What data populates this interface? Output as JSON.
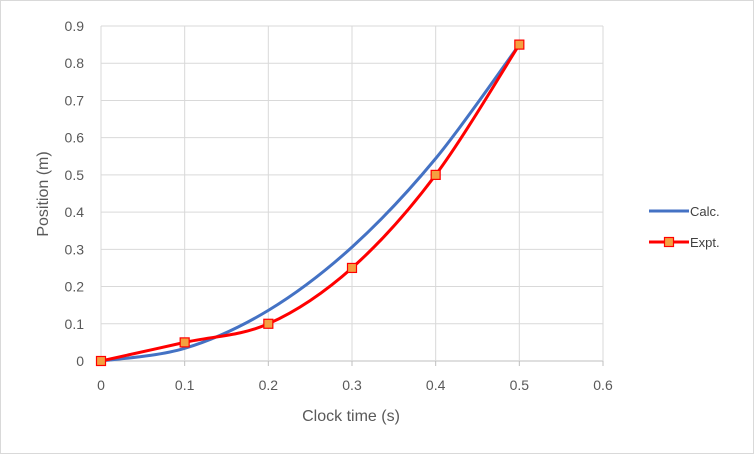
{
  "chart_data": {
    "type": "line",
    "title": "",
    "xlabel": "Clock time (s)",
    "ylabel": "Position  (m)",
    "xlim": [
      0,
      0.6
    ],
    "ylim": [
      0,
      0.9
    ],
    "x_ticks": [
      "0",
      "0.1",
      "0.2",
      "0.3",
      "0.4",
      "0.5",
      "0.6"
    ],
    "y_ticks": [
      "0",
      "0.1",
      "0.2",
      "0.3",
      "0.4",
      "0.5",
      "0.6",
      "0.7",
      "0.8",
      "0.9"
    ],
    "grid": true,
    "legend_position": "right",
    "series": [
      {
        "name": "Calc.",
        "color": "#4472c4",
        "marker": "none",
        "smooth": true,
        "x": [
          0,
          0.1,
          0.2,
          0.3,
          0.4,
          0.5
        ],
        "y": [
          0,
          0.034,
          0.136,
          0.306,
          0.544,
          0.85
        ]
      },
      {
        "name": "Expt.",
        "color": "#ff0000",
        "marker": "square",
        "marker_fill": "#f4a040",
        "smooth": true,
        "x": [
          0,
          0.1,
          0.2,
          0.3,
          0.4,
          0.5
        ],
        "y": [
          0,
          0.05,
          0.1,
          0.25,
          0.5,
          0.85
        ]
      }
    ]
  }
}
